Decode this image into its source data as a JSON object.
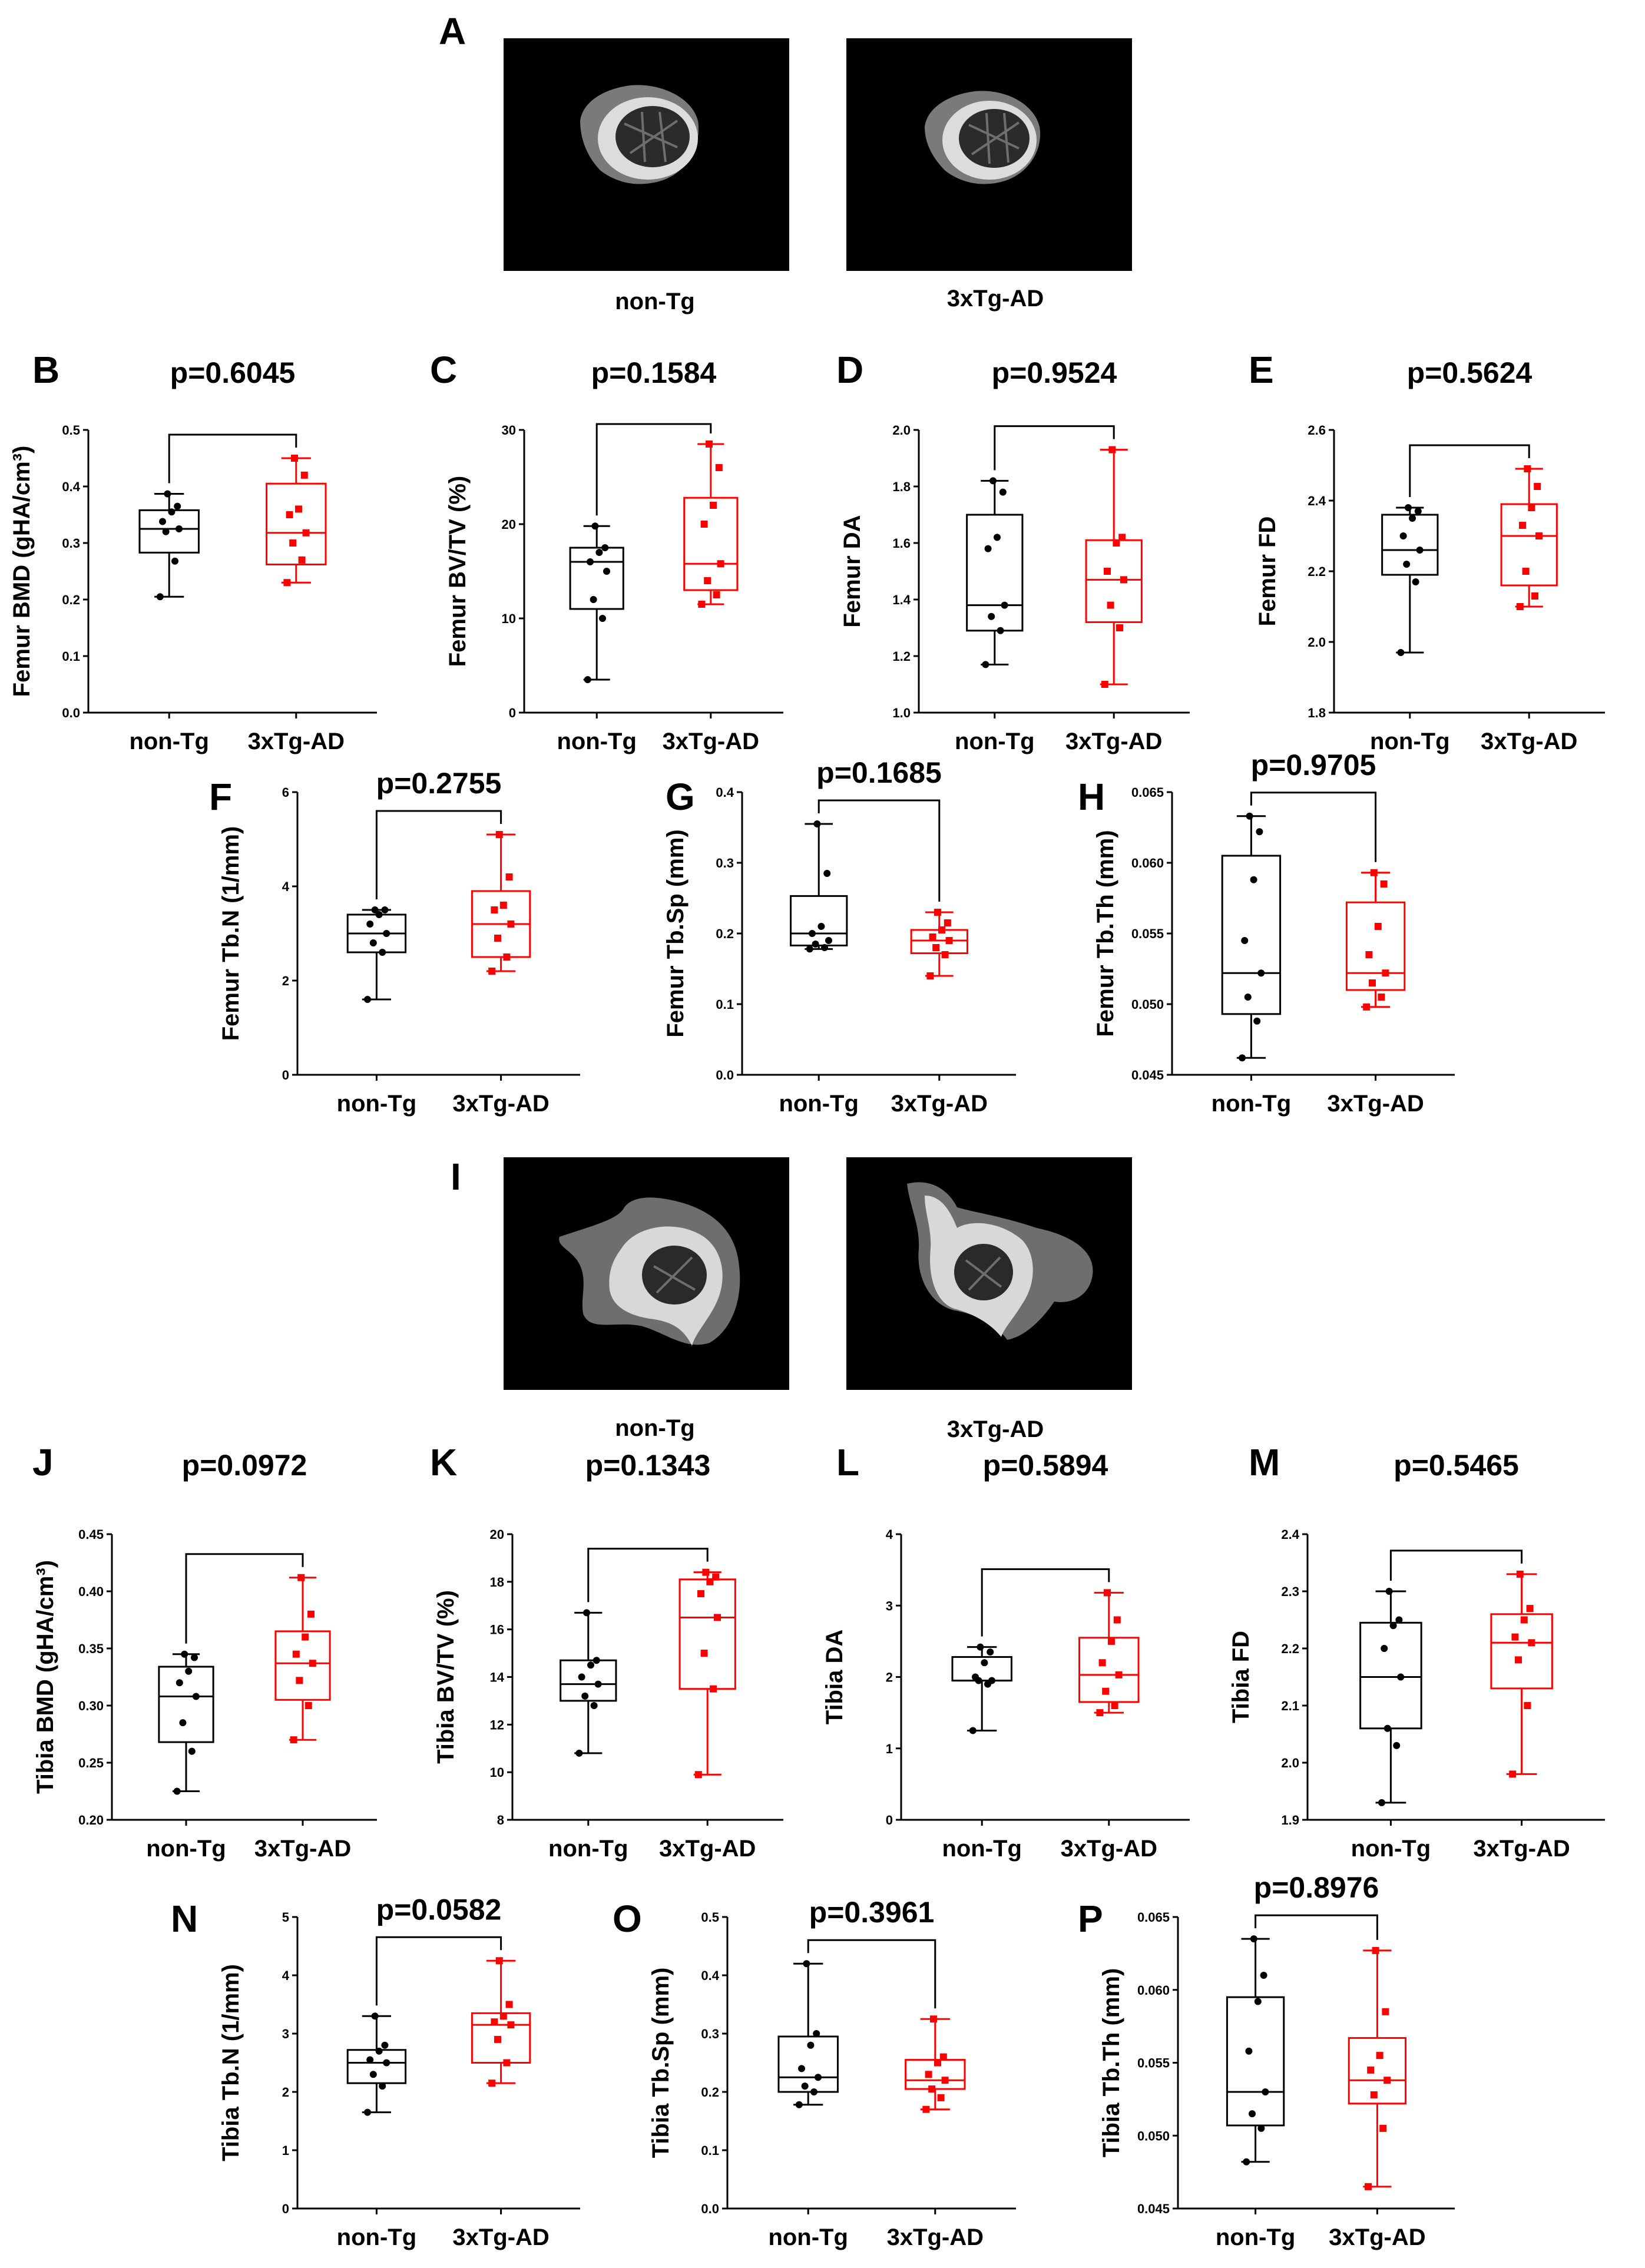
{
  "figure": {
    "image_panels": [
      {
        "label": "A",
        "bone": "femur",
        "captions": [
          "non-Tg",
          "3xTg-AD"
        ]
      },
      {
        "label": "I",
        "bone": "tibia",
        "captions": [
          "non-Tg",
          "3xTg-AD"
        ]
      }
    ],
    "colors": {
      "control": "#000000",
      "transgenic": "#ff0000",
      "photo_background": "#000000"
    }
  },
  "chart_data": [
    {
      "label": "B",
      "type": "box",
      "ylabel": "Femur BMD (gHA/cm³)",
      "ylim": [
        0,
        0.5
      ],
      "yticks": [
        "0.0",
        "0.1",
        "0.2",
        "0.3",
        "0.4",
        "0.5"
      ],
      "categories": [
        "non-Tg",
        "3xTg-AD"
      ],
      "p_value": "p=0.6045",
      "series": [
        {
          "name": "non-Tg",
          "color": "#000000",
          "min": 0.205,
          "q1": 0.283,
          "median": 0.325,
          "q3": 0.358,
          "max": 0.387,
          "points": [
            0.205,
            0.268,
            0.32,
            0.325,
            0.338,
            0.355,
            0.365,
            0.387
          ]
        },
        {
          "name": "3xTg-AD",
          "color": "#ff0000",
          "min": 0.23,
          "q1": 0.262,
          "median": 0.318,
          "q3": 0.405,
          "max": 0.45,
          "points": [
            0.23,
            0.27,
            0.3,
            0.318,
            0.35,
            0.36,
            0.42,
            0.45
          ]
        }
      ]
    },
    {
      "label": "C",
      "type": "box",
      "ylabel": "Femur BV/TV (%)",
      "ylim": [
        0,
        30
      ],
      "yticks": [
        "0",
        "10",
        "20",
        "30"
      ],
      "categories": [
        "non-Tg",
        "3xTg-AD"
      ],
      "p_value": "p=0.1584",
      "series": [
        {
          "name": "non-Tg",
          "color": "#000000",
          "min": 3.5,
          "q1": 11,
          "median": 16,
          "q3": 17.5,
          "max": 19.8,
          "points": [
            3.5,
            10,
            12,
            15,
            16,
            17,
            17.5,
            19.8
          ]
        },
        {
          "name": "3xTg-AD",
          "color": "#ff0000",
          "min": 11.5,
          "q1": 13,
          "median": 15.8,
          "q3": 22.8,
          "max": 28.5,
          "points": [
            11.5,
            12.5,
            14,
            15.8,
            20,
            22,
            26,
            28.5
          ]
        }
      ]
    },
    {
      "label": "D",
      "type": "box",
      "ylabel": "Femur DA",
      "ylim": [
        1,
        2
      ],
      "yticks": [
        "1.0",
        "1.2",
        "1.4",
        "1.6",
        "1.8",
        "2.0"
      ],
      "categories": [
        "non-Tg",
        "3xTg-AD"
      ],
      "p_value": "p=0.9524",
      "series": [
        {
          "name": "non-Tg",
          "color": "#000000",
          "min": 1.17,
          "q1": 1.29,
          "median": 1.38,
          "q3": 1.7,
          "max": 1.82,
          "points": [
            1.17,
            1.29,
            1.34,
            1.38,
            1.58,
            1.62,
            1.78,
            1.82
          ]
        },
        {
          "name": "3xTg-AD",
          "color": "#ff0000",
          "min": 1.1,
          "q1": 1.32,
          "median": 1.47,
          "q3": 1.61,
          "max": 1.93,
          "points": [
            1.1,
            1.3,
            1.38,
            1.47,
            1.5,
            1.6,
            1.62,
            1.93
          ]
        }
      ]
    },
    {
      "label": "E",
      "type": "box",
      "ylabel": "Femur FD",
      "ylim": [
        1.8,
        2.6
      ],
      "yticks": [
        "1.8",
        "2.0",
        "2.2",
        "2.4",
        "2.6"
      ],
      "categories": [
        "non-Tg",
        "3xTg-AD"
      ],
      "p_value": "p=0.5624",
      "series": [
        {
          "name": "non-Tg",
          "color": "#000000",
          "min": 1.97,
          "q1": 2.19,
          "median": 2.26,
          "q3": 2.36,
          "max": 2.38,
          "points": [
            1.97,
            2.17,
            2.22,
            2.26,
            2.3,
            2.35,
            2.37,
            2.38
          ]
        },
        {
          "name": "3xTg-AD",
          "color": "#ff0000",
          "min": 2.1,
          "q1": 2.16,
          "median": 2.3,
          "q3": 2.39,
          "max": 2.49,
          "points": [
            2.1,
            2.13,
            2.2,
            2.3,
            2.33,
            2.38,
            2.44,
            2.49
          ]
        }
      ]
    },
    {
      "label": "F",
      "type": "box",
      "ylabel": "Femur Tb.N (1/mm)",
      "ylim": [
        0,
        6
      ],
      "yticks": [
        "0",
        "2",
        "4",
        "6"
      ],
      "categories": [
        "non-Tg",
        "3xTg-AD"
      ],
      "p_value": "p=0.2755",
      "series": [
        {
          "name": "non-Tg",
          "color": "#000000",
          "min": 1.6,
          "q1": 2.6,
          "median": 3,
          "q3": 3.4,
          "max": 3.5,
          "points": [
            1.6,
            2.6,
            2.8,
            3,
            3.2,
            3.4,
            3.5,
            3.5
          ]
        },
        {
          "name": "3xTg-AD",
          "color": "#ff0000",
          "min": 2.2,
          "q1": 2.5,
          "median": 3.2,
          "q3": 3.9,
          "max": 5.1,
          "points": [
            2.2,
            2.5,
            2.9,
            3.2,
            3.5,
            3.6,
            4.2,
            5.1
          ]
        }
      ]
    },
    {
      "label": "G",
      "type": "box",
      "ylabel": "Femur Tb.Sp (mm)",
      "ylim": [
        0,
        0.4
      ],
      "yticks": [
        "0.0",
        "0.1",
        "0.2",
        "0.3",
        "0.4"
      ],
      "categories": [
        "non-Tg",
        "3xTg-AD"
      ],
      "p_value": "p=0.1685",
      "series": [
        {
          "name": "non-Tg",
          "color": "#000000",
          "min": 0.178,
          "q1": 0.183,
          "median": 0.2,
          "q3": 0.253,
          "max": 0.355,
          "points": [
            0.178,
            0.18,
            0.185,
            0.19,
            0.2,
            0.21,
            0.285,
            0.355
          ]
        },
        {
          "name": "3xTg-AD",
          "color": "#ff0000",
          "min": 0.14,
          "q1": 0.172,
          "median": 0.19,
          "q3": 0.205,
          "max": 0.23,
          "points": [
            0.14,
            0.17,
            0.18,
            0.19,
            0.195,
            0.205,
            0.215,
            0.23
          ]
        }
      ]
    },
    {
      "label": "H",
      "type": "box",
      "ylabel": "Femur Tb.Th (mm)",
      "ylim": [
        0.045,
        0.065
      ],
      "yticks": [
        "0.045",
        "0.050",
        "0.055",
        "0.060",
        "0.065"
      ],
      "categories": [
        "non-Tg",
        "3xTg-AD"
      ],
      "p_value": "p=0.9705",
      "series": [
        {
          "name": "non-Tg",
          "color": "#000000",
          "min": 0.0462,
          "q1": 0.0493,
          "median": 0.0522,
          "q3": 0.0605,
          "max": 0.0633,
          "points": [
            0.0462,
            0.0488,
            0.0505,
            0.0522,
            0.0545,
            0.0588,
            0.0622,
            0.0633
          ]
        },
        {
          "name": "3xTg-AD",
          "color": "#ff0000",
          "min": 0.0498,
          "q1": 0.051,
          "median": 0.0522,
          "q3": 0.0572,
          "max": 0.0593,
          "points": [
            0.0498,
            0.0505,
            0.0515,
            0.0522,
            0.0535,
            0.0555,
            0.0585,
            0.0593
          ]
        }
      ]
    },
    {
      "label": "J",
      "type": "box",
      "ylabel": "Tibia BMD (gHA/cm³)",
      "ylim": [
        0.2,
        0.45
      ],
      "yticks": [
        "0.20",
        "0.25",
        "0.30",
        "0.35",
        "0.40",
        "0.45"
      ],
      "categories": [
        "non-Tg",
        "3xTg-AD"
      ],
      "p_value": "p=0.0972",
      "series": [
        {
          "name": "non-Tg",
          "color": "#000000",
          "min": 0.225,
          "q1": 0.268,
          "median": 0.308,
          "q3": 0.334,
          "max": 0.345,
          "points": [
            0.225,
            0.26,
            0.285,
            0.308,
            0.32,
            0.33,
            0.342,
            0.345
          ]
        },
        {
          "name": "3xTg-AD",
          "color": "#ff0000",
          "min": 0.27,
          "q1": 0.305,
          "median": 0.337,
          "q3": 0.365,
          "max": 0.412,
          "points": [
            0.27,
            0.3,
            0.322,
            0.337,
            0.345,
            0.36,
            0.38,
            0.412
          ]
        }
      ]
    },
    {
      "label": "K",
      "type": "box",
      "ylabel": "Tibia BV/TV (%)",
      "ylim": [
        8,
        20
      ],
      "yticks": [
        "8",
        "10",
        "12",
        "14",
        "16",
        "18",
        "20"
      ],
      "categories": [
        "non-Tg",
        "3xTg-AD"
      ],
      "p_value": "p=0.1343",
      "series": [
        {
          "name": "non-Tg",
          "color": "#000000",
          "min": 10.8,
          "q1": 13,
          "median": 13.7,
          "q3": 14.7,
          "max": 16.7,
          "points": [
            10.8,
            12.8,
            13.2,
            13.7,
            14,
            14.5,
            14.7,
            16.7
          ]
        },
        {
          "name": "3xTg-AD",
          "color": "#ff0000",
          "min": 9.9,
          "q1": 13.5,
          "median": 16.5,
          "q3": 18.1,
          "max": 18.4,
          "points": [
            9.9,
            13.5,
            15,
            16.5,
            17.5,
            18,
            18.2,
            18.4
          ]
        }
      ]
    },
    {
      "label": "L",
      "type": "box",
      "ylabel": "Tibia DA",
      "ylim": [
        0,
        4
      ],
      "yticks": [
        "0",
        "1",
        "2",
        "3",
        "4"
      ],
      "categories": [
        "non-Tg",
        "3xTg-AD"
      ],
      "p_value": "p=0.5894",
      "series": [
        {
          "name": "non-Tg",
          "color": "#000000",
          "min": 1.25,
          "q1": 1.95,
          "median": 1.95,
          "q3": 2.28,
          "max": 2.42,
          "points": [
            1.25,
            1.9,
            1.95,
            1.95,
            2,
            2.2,
            2.35,
            2.42
          ]
        },
        {
          "name": "3xTg-AD",
          "color": "#ff0000",
          "min": 1.5,
          "q1": 1.65,
          "median": 2.03,
          "q3": 2.55,
          "max": 3.18,
          "points": [
            1.5,
            1.6,
            1.8,
            2.03,
            2.2,
            2.5,
            2.8,
            3.18
          ]
        }
      ]
    },
    {
      "label": "M",
      "type": "box",
      "ylabel": "Tibia FD",
      "ylim": [
        1.9,
        2.4
      ],
      "yticks": [
        "1.9",
        "2.0",
        "2.1",
        "2.2",
        "2.3",
        "2.4"
      ],
      "categories": [
        "non-Tg",
        "3xTg-AD"
      ],
      "p_value": "p=0.5465",
      "series": [
        {
          "name": "non-Tg",
          "color": "#000000",
          "min": 1.93,
          "q1": 2.06,
          "median": 2.15,
          "q3": 2.245,
          "max": 2.3,
          "points": [
            1.93,
            2.03,
            2.06,
            2.15,
            2.2,
            2.24,
            2.25,
            2.3
          ]
        },
        {
          "name": "3xTg-AD",
          "color": "#ff0000",
          "min": 1.98,
          "q1": 2.13,
          "median": 2.21,
          "q3": 2.26,
          "max": 2.33,
          "points": [
            1.98,
            2.1,
            2.18,
            2.21,
            2.22,
            2.25,
            2.27,
            2.33
          ]
        }
      ]
    },
    {
      "label": "N",
      "type": "box",
      "ylabel": "Tibia Tb.N (1/mm)",
      "ylim": [
        0,
        5
      ],
      "yticks": [
        "0",
        "1",
        "2",
        "3",
        "4",
        "5"
      ],
      "categories": [
        "non-Tg",
        "3xTg-AD"
      ],
      "p_value": "p=0.0582",
      "series": [
        {
          "name": "non-Tg",
          "color": "#000000",
          "min": 1.65,
          "q1": 2.15,
          "median": 2.5,
          "q3": 2.72,
          "max": 3.3,
          "points": [
            1.65,
            2.1,
            2.3,
            2.5,
            2.55,
            2.7,
            2.8,
            3.3
          ]
        },
        {
          "name": "3xTg-AD",
          "color": "#ff0000",
          "min": 2.15,
          "q1": 2.5,
          "median": 3.15,
          "q3": 3.35,
          "max": 4.25,
          "points": [
            2.15,
            2.5,
            2.9,
            3.15,
            3.2,
            3.3,
            3.5,
            4.25
          ]
        }
      ]
    },
    {
      "label": "O",
      "type": "box",
      "ylabel": "Tibia Tb.Sp (mm)",
      "ylim": [
        0,
        0.5
      ],
      "yticks": [
        "0.0",
        "0.1",
        "0.2",
        "0.3",
        "0.4",
        "0.5"
      ],
      "categories": [
        "non-Tg",
        "3xTg-AD"
      ],
      "p_value": "p=0.3961",
      "series": [
        {
          "name": "non-Tg",
          "color": "#000000",
          "min": 0.178,
          "q1": 0.2,
          "median": 0.225,
          "q3": 0.295,
          "max": 0.42,
          "points": [
            0.178,
            0.2,
            0.21,
            0.225,
            0.24,
            0.28,
            0.3,
            0.42
          ]
        },
        {
          "name": "3xTg-AD",
          "color": "#ff0000",
          "min": 0.17,
          "q1": 0.205,
          "median": 0.22,
          "q3": 0.255,
          "max": 0.325,
          "points": [
            0.17,
            0.19,
            0.205,
            0.22,
            0.23,
            0.25,
            0.26,
            0.325
          ]
        }
      ]
    },
    {
      "label": "P",
      "type": "box",
      "ylabel": "Tibia Tb.Th (mm)",
      "ylim": [
        0.045,
        0.065
      ],
      "yticks": [
        "0.045",
        "0.050",
        "0.055",
        "0.060",
        "0.065"
      ],
      "categories": [
        "non-Tg",
        "3xTg-AD"
      ],
      "p_value": "p=0.8976",
      "series": [
        {
          "name": "non-Tg",
          "color": "#000000",
          "min": 0.0482,
          "q1": 0.0507,
          "median": 0.053,
          "q3": 0.0595,
          "max": 0.0635,
          "points": [
            0.0482,
            0.0505,
            0.0515,
            0.053,
            0.0558,
            0.0592,
            0.061,
            0.0635
          ]
        },
        {
          "name": "3xTg-AD",
          "color": "#ff0000",
          "min": 0.0465,
          "q1": 0.0522,
          "median": 0.0538,
          "q3": 0.0567,
          "max": 0.0627,
          "points": [
            0.0465,
            0.0505,
            0.0528,
            0.0538,
            0.0545,
            0.0555,
            0.0585,
            0.0627
          ]
        }
      ]
    }
  ]
}
